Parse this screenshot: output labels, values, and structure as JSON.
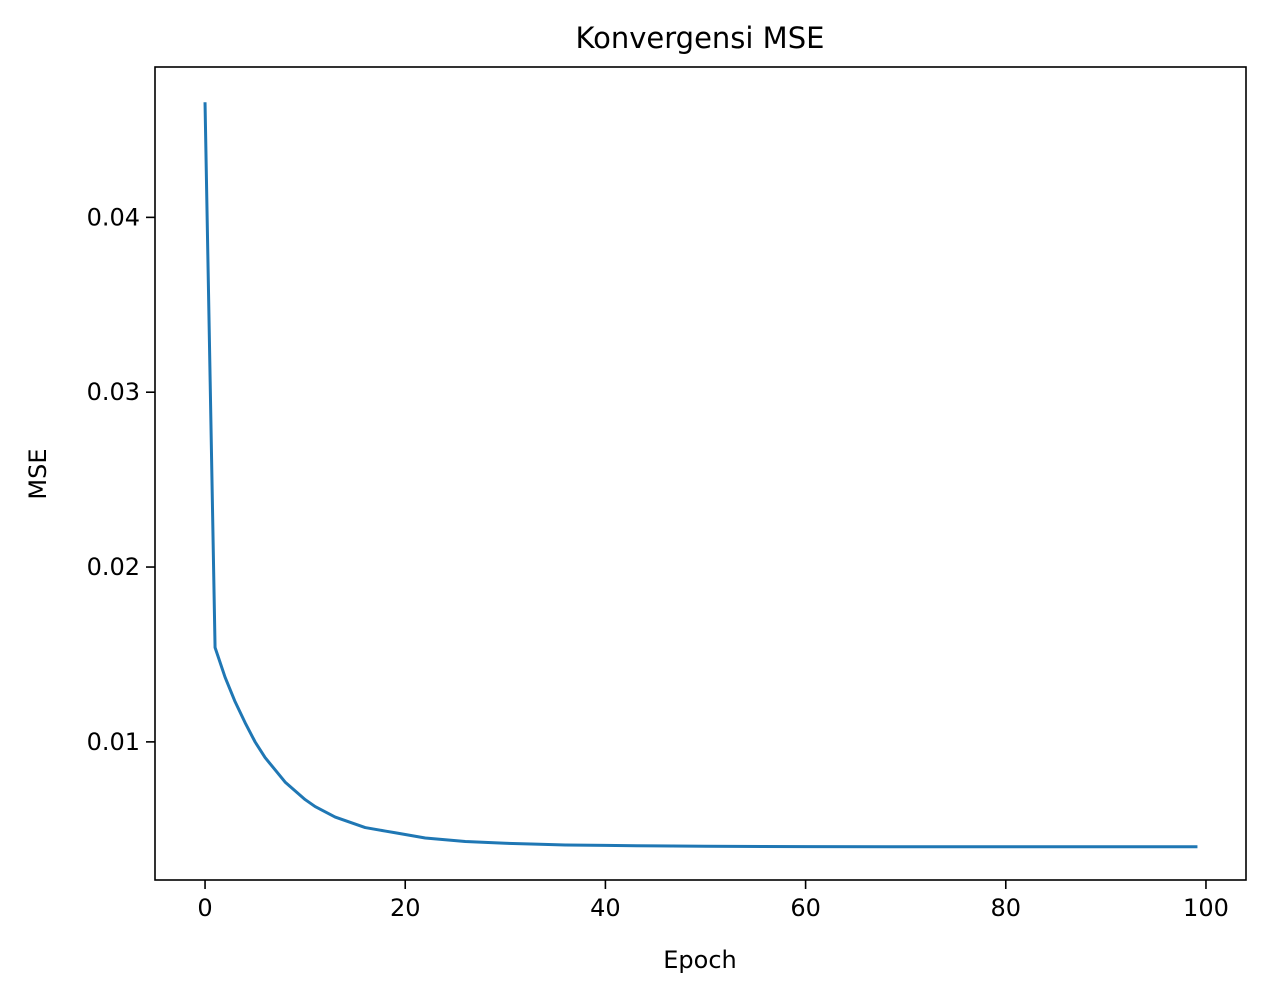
{
  "chart_data": {
    "type": "line",
    "title": "Konvergensi MSE",
    "xlabel": "Epoch",
    "ylabel": "MSE",
    "xlim": [
      -5,
      104
    ],
    "ylim": [
      0.0021,
      0.0486
    ],
    "grid": false,
    "x_ticks": [
      {
        "value": 0,
        "label": "0"
      },
      {
        "value": 20,
        "label": "20"
      },
      {
        "value": 40,
        "label": "40"
      },
      {
        "value": 60,
        "label": "60"
      },
      {
        "value": 80,
        "label": "80"
      },
      {
        "value": 100,
        "label": "100"
      }
    ],
    "y_ticks": [
      {
        "value": 0.01,
        "label": "0.01"
      },
      {
        "value": 0.02,
        "label": "0.02"
      },
      {
        "value": 0.03,
        "label": "0.03"
      },
      {
        "value": 0.04,
        "label": "0.04"
      }
    ],
    "series": [
      {
        "color": "#1f77b4",
        "x": [
          0,
          1,
          2,
          3,
          4,
          5,
          6,
          7,
          8,
          9,
          10,
          11,
          12,
          13,
          14,
          15,
          16,
          17,
          18,
          19,
          20,
          22,
          24,
          26,
          28,
          30,
          33,
          36,
          40,
          45,
          50,
          60,
          70,
          80,
          90,
          99
        ],
        "y": [
          0.0465,
          0.0154,
          0.0137,
          0.0123,
          0.0111,
          0.01,
          0.0091,
          0.0084,
          0.0077,
          0.0072,
          0.0067,
          0.0063,
          0.006,
          0.0057,
          0.0055,
          0.0053,
          0.0051,
          0.005,
          0.0049,
          0.0048,
          0.0047,
          0.0045,
          0.0044,
          0.0043,
          0.00425,
          0.0042,
          0.00415,
          0.0041,
          0.00408,
          0.00405,
          0.00403,
          0.00401,
          0.004,
          0.004,
          0.004,
          0.004
        ]
      }
    ]
  }
}
